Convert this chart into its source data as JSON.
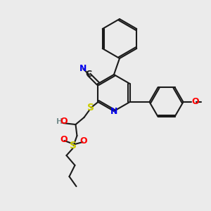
{
  "background_color": "#ebebeb",
  "bond_color": "#1a1a1a",
  "atom_colors": {
    "N": "#0000ee",
    "O": "#ff0000",
    "S": "#cccc00",
    "H": "#7a9090"
  },
  "figsize": [
    3.0,
    3.0
  ],
  "dpi": 100
}
